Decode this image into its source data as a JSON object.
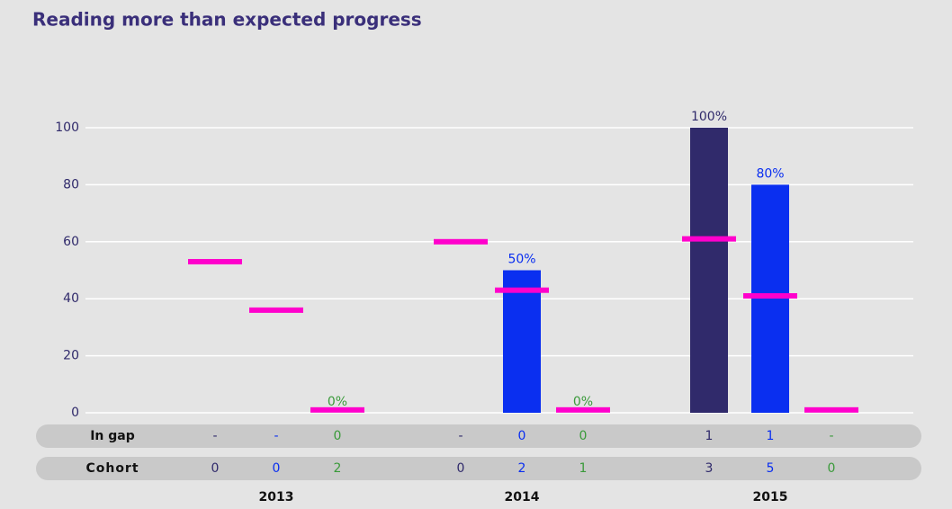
{
  "chart_data": {
    "type": "bar",
    "title": "Reading more than expected progress",
    "categories": [
      "2013",
      "2014",
      "2015"
    ],
    "series": [
      {
        "color": "#302a6b",
        "label_color": "#302a6b",
        "values": [
          null,
          null,
          100
        ],
        "value_labels": [
          null,
          null,
          "100%"
        ],
        "benchmarks": [
          53,
          60,
          61
        ]
      },
      {
        "color": "#0a2ff0",
        "label_color": "#0a2ff0",
        "values": [
          null,
          50,
          80
        ],
        "value_labels": [
          null,
          "50%",
          "80%"
        ],
        "benchmarks": [
          36,
          43,
          41
        ]
      },
      {
        "color": "#3a9a3a",
        "label_color": "#3a9a3a",
        "values": [
          0,
          0,
          null
        ],
        "value_labels": [
          "0%",
          "0%",
          null
        ],
        "benchmarks": [
          1,
          1,
          1
        ]
      }
    ],
    "benchmark_color": "#ff00cc",
    "ylim": [
      0,
      100
    ],
    "yticks": [
      0,
      20,
      40,
      60,
      80,
      100
    ],
    "grid": true,
    "rows": [
      {
        "label": "In gap",
        "values": [
          "-",
          "-",
          "0",
          "-",
          "0",
          "0",
          "1",
          "1",
          "-"
        ]
      },
      {
        "label": "Cohort",
        "values": [
          0,
          0,
          2,
          0,
          2,
          1,
          3,
          5,
          0
        ]
      }
    ]
  }
}
